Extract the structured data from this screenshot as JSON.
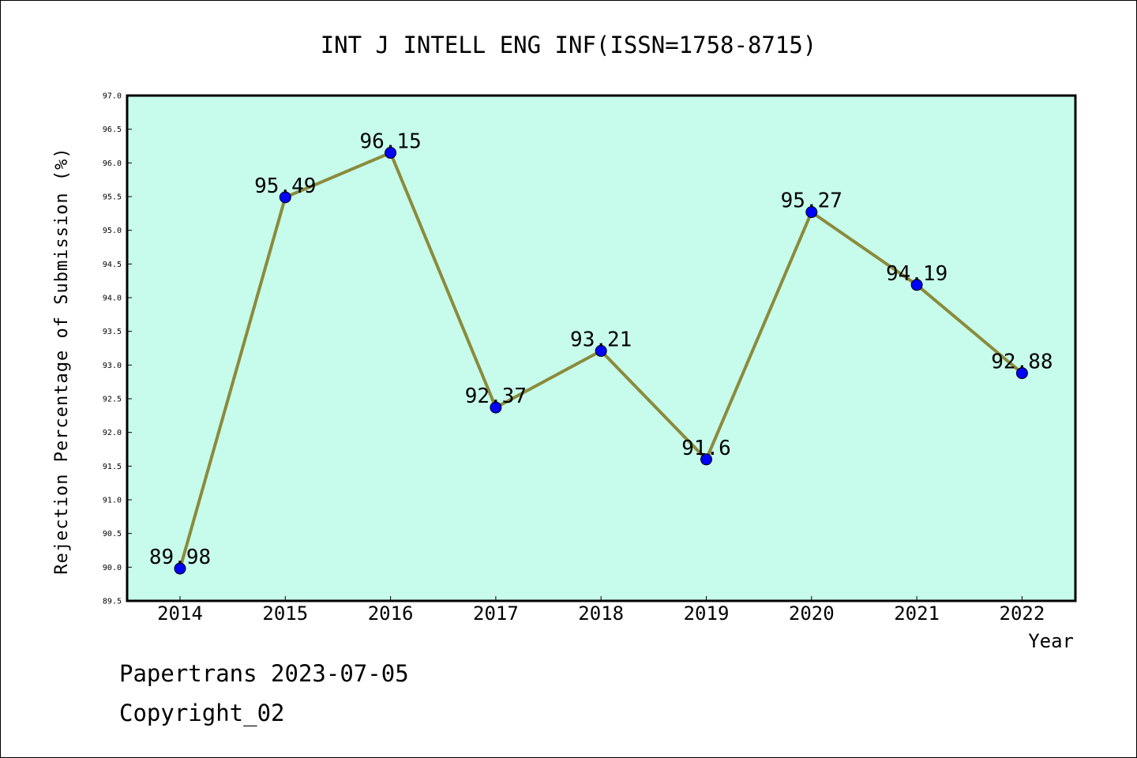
{
  "chart_data": {
    "type": "line",
    "title": "INT J INTELL ENG INF(ISSN=1758-8715)",
    "xlabel": "Year",
    "ylabel": "Rejection Percentage of Submission (%)",
    "categories": [
      "2014",
      "2015",
      "2016",
      "2017",
      "2018",
      "2019",
      "2020",
      "2021",
      "2022"
    ],
    "values": [
      89.98,
      95.49,
      96.15,
      92.37,
      93.21,
      91.6,
      95.27,
      94.19,
      92.88
    ],
    "data_labels": [
      "89.98",
      "95.49",
      "96.15",
      "92.37",
      "93.21",
      "91.6",
      "95.27",
      "94.19",
      "92.88"
    ],
    "ylim": [
      89.5,
      97.0
    ],
    "yticks": [
      "89.5",
      "90.0",
      "90.5",
      "91.0",
      "91.5",
      "92.0",
      "92.5",
      "93.0",
      "93.5",
      "94.0",
      "94.5",
      "95.0",
      "95.5",
      "96.0",
      "96.5",
      "97.0"
    ],
    "grid": false,
    "colors": {
      "plot_background": "#c7fcec",
      "line": "#8b8b3c",
      "marker": "#0000ff",
      "frame": "#000000"
    }
  },
  "footer": {
    "line1": "Papertrans 2023-07-05",
    "line2": "Copyright_02"
  }
}
